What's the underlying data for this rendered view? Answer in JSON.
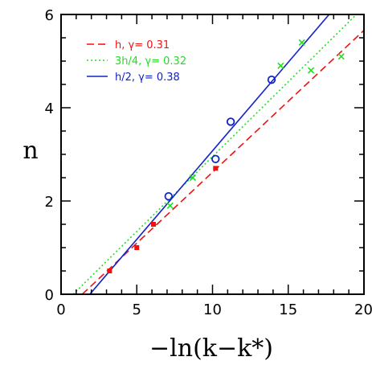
{
  "chart_data": {
    "type": "scatter",
    "xlabel": "−ln(k−k*)",
    "ylabel": "n",
    "xlim": [
      0,
      20
    ],
    "ylim": [
      0,
      6
    ],
    "xticks": [
      0,
      5,
      10,
      15,
      20
    ],
    "yticks": [
      0,
      2,
      4,
      6
    ],
    "x_minor_step": 1,
    "y_minor_step": 0.5,
    "grid": false,
    "legend_position": "top-left",
    "series": [
      {
        "name": "h, γ= 0.31",
        "color": "#ee1111",
        "line_style": "dashed",
        "marker": "filled-square",
        "points": [
          [
            3.2,
            0.5
          ],
          [
            5.0,
            1.0
          ],
          [
            6.1,
            1.5
          ],
          [
            10.2,
            2.7
          ]
        ],
        "fit": [
          [
            1.4,
            0.0
          ],
          [
            20.0,
            5.66
          ]
        ]
      },
      {
        "name": "3h/4, γ= 0.32",
        "color": "#22dd22",
        "line_style": "dotted",
        "marker": "cross",
        "points": [
          [
            7.2,
            1.9
          ],
          [
            8.7,
            2.5
          ],
          [
            14.5,
            4.9
          ],
          [
            15.9,
            5.4
          ],
          [
            16.5,
            4.8
          ],
          [
            18.5,
            5.1
          ]
        ],
        "fit": [
          [
            0.8,
            0.0
          ],
          [
            19.5,
            6.0
          ]
        ]
      },
      {
        "name": "h/2, γ= 0.38",
        "color": "#1122cc",
        "line_style": "solid",
        "marker": "open-circle",
        "points": [
          [
            7.1,
            2.1
          ],
          [
            10.2,
            2.9
          ],
          [
            11.2,
            3.7
          ],
          [
            13.9,
            4.6
          ]
        ],
        "fit": [
          [
            1.9,
            0.0
          ],
          [
            17.7,
            6.0
          ]
        ]
      }
    ]
  }
}
